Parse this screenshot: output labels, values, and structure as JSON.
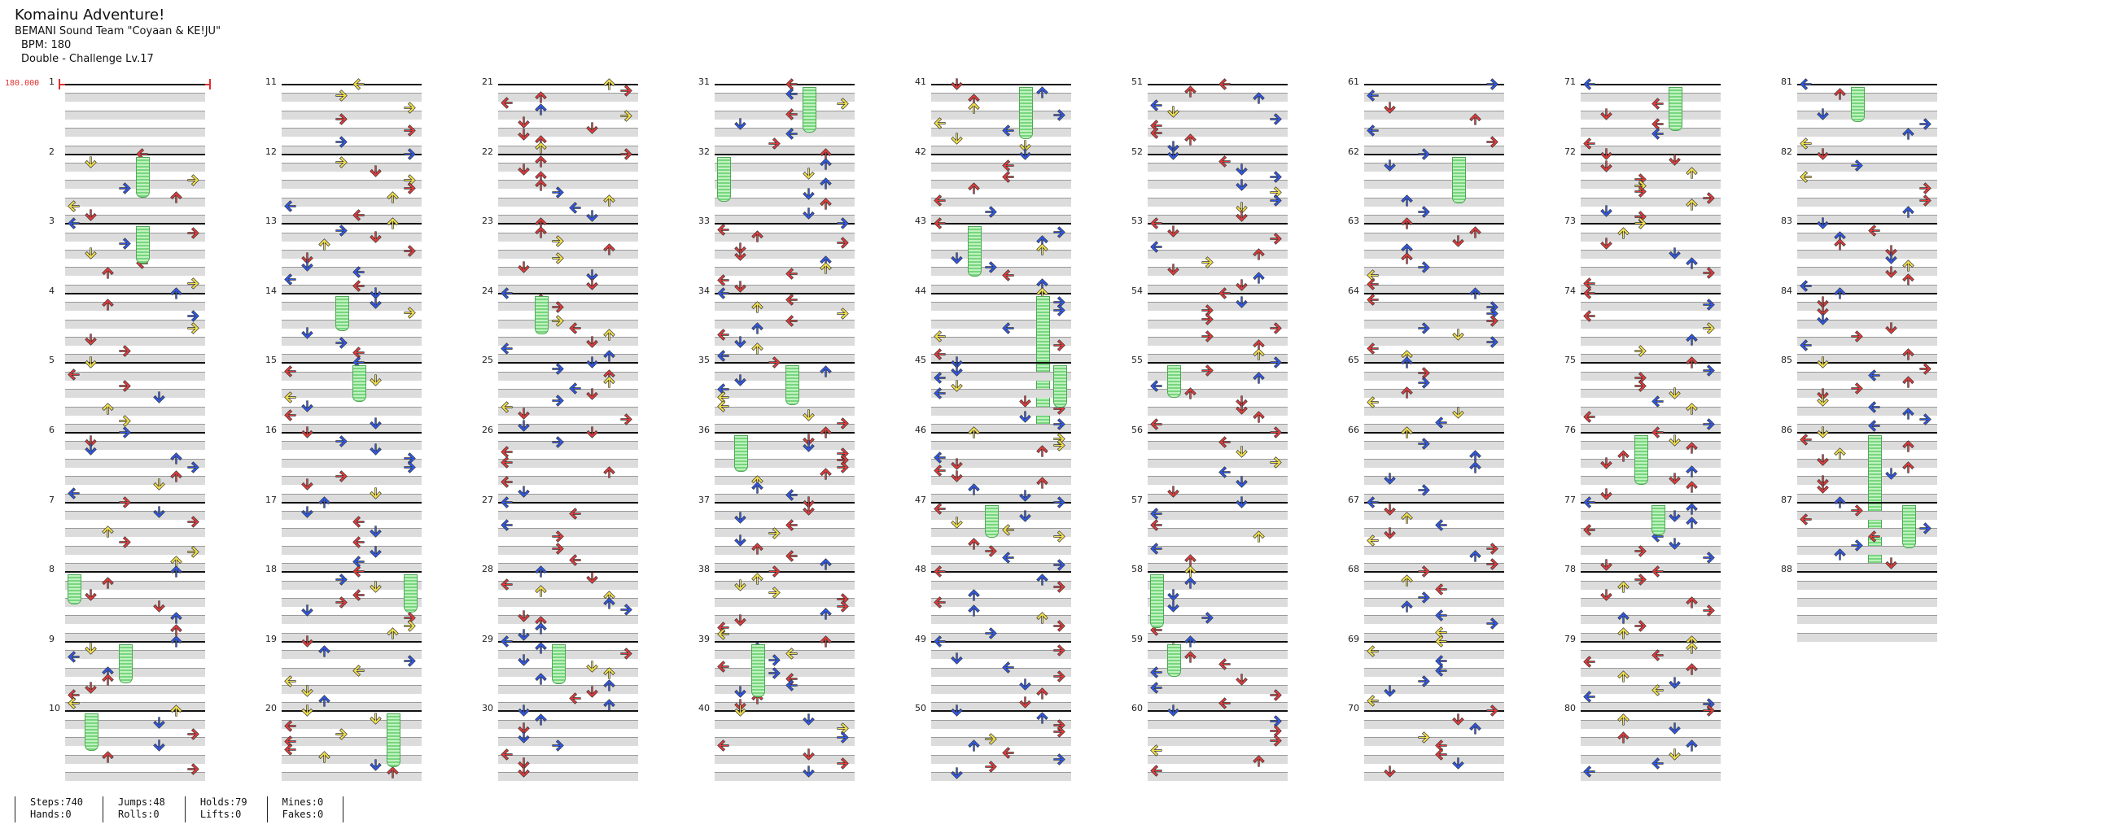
{
  "song": {
    "title": "Komainu Adventure!",
    "artist": "BEMANI Sound Team \"Coyaan & KE!JU\"",
    "bpm_label": "BPM: 180",
    "difficulty": "Double - Challenge  Lv.17",
    "bpm_marker": "180.000"
  },
  "measure_numbers": [
    1,
    2,
    3,
    4,
    5,
    6,
    7,
    8,
    9,
    10,
    11,
    12,
    13,
    14,
    15,
    16,
    17,
    18,
    19,
    20,
    21,
    22,
    23,
    24,
    25,
    26,
    27,
    28,
    29,
    30,
    31,
    32,
    33,
    34,
    35,
    36,
    37,
    38,
    39,
    40,
    41,
    42,
    43,
    44,
    45,
    46,
    47,
    48,
    49,
    50,
    51,
    52,
    53,
    54,
    55,
    56,
    57,
    58,
    59,
    60,
    61,
    62,
    63,
    64,
    65,
    66,
    67,
    68,
    69,
    70,
    71,
    72,
    73,
    74,
    75,
    76,
    77,
    78,
    79,
    80,
    81,
    82,
    83,
    84,
    85,
    86,
    87,
    88
  ],
  "stats": {
    "steps": "Steps:740",
    "hands": "Hands:0",
    "jumps": "Jumps:48",
    "rolls": "Rolls:0",
    "holds": "Holds:79",
    "lifts": "Lifts:0",
    "mines": "Mines:0",
    "fakes": "Fakes:0"
  },
  "colors": {
    "quarter_note": "#e23a3a",
    "eighth_note": "#2f58e8",
    "sixteenth_note": "#f3e04a",
    "twelfth_note": "#b030e0",
    "hold_body": "#8fe08f",
    "measure_band": "#dcdcdc",
    "bpm_marker": "#e03030"
  },
  "icons": {
    "arrows": [
      "left-arrow-icon",
      "down-arrow-icon",
      "up-arrow-icon",
      "right-arrow-icon"
    ],
    "hold": "freeze-arrow-icon"
  }
}
